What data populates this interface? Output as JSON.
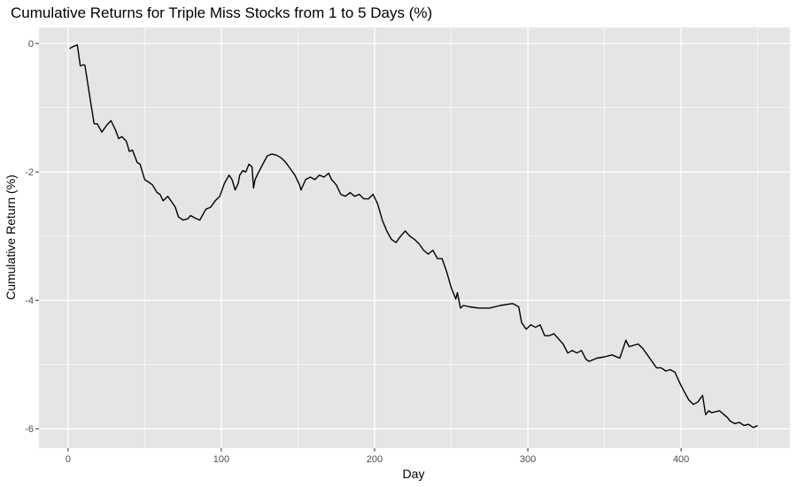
{
  "chart_data": {
    "type": "line",
    "title": "Cumulative Returns for Triple Miss Stocks from 1 to 5 Days (%)",
    "xlabel": "Day",
    "ylabel": "Cumulative Return (%)",
    "xlim": [
      -19,
      471
    ],
    "ylim": [
      -6.3,
      0.25
    ],
    "x_ticks": [
      0,
      100,
      200,
      300,
      400
    ],
    "x_tick_labels": [
      "0",
      "100",
      "200",
      "300",
      "400"
    ],
    "y_ticks": [
      0,
      -2,
      -4,
      -6
    ],
    "y_tick_labels": [
      "0",
      "-2",
      "-4",
      "-6"
    ],
    "grid": true,
    "colors": {
      "panel": "#e5e5e5",
      "grid": "#ffffff",
      "line": "#000000",
      "tick": "#4d4d4d"
    },
    "series": [
      {
        "color": "#000000",
        "x": [
          1,
          3,
          6,
          8,
          10,
          11,
          13,
          15,
          17,
          19,
          22,
          25,
          28,
          31,
          33,
          35,
          38,
          40,
          42,
          45,
          47,
          50,
          52,
          55,
          58,
          60,
          62,
          65,
          68,
          70,
          72,
          75,
          78,
          80,
          83,
          86,
          88,
          90,
          93,
          96,
          99,
          102,
          105,
          107,
          109,
          111,
          112,
          114,
          116,
          118,
          120,
          121,
          122,
          124,
          127,
          130,
          133,
          136,
          139,
          142,
          145,
          148,
          151,
          152,
          155,
          158,
          161,
          164,
          167,
          170,
          172,
          175,
          178,
          181,
          184,
          187,
          190,
          193,
          196,
          199,
          202,
          205,
          208,
          211,
          214,
          217,
          220,
          223,
          226,
          229,
          232,
          235,
          238,
          241,
          244,
          247,
          250,
          253,
          254,
          256,
          258,
          262,
          268,
          275,
          282,
          290,
          294,
          296,
          299,
          302,
          305,
          308,
          311,
          314,
          317,
          320,
          323,
          326,
          329,
          332,
          335,
          338,
          340,
          345,
          350,
          355,
          360,
          364,
          366,
          369,
          372,
          375,
          378,
          381,
          384,
          387,
          390,
          393,
          396,
          399,
          402,
          405,
          408,
          411,
          414,
          416,
          418,
          420,
          425,
          430,
          432,
          435,
          438,
          441,
          444,
          447,
          450
        ],
        "y": [
          -0.08,
          -0.05,
          -0.02,
          -0.35,
          -0.33,
          -0.34,
          -0.65,
          -0.95,
          -1.25,
          -1.25,
          -1.38,
          -1.28,
          -1.2,
          -1.35,
          -1.48,
          -1.45,
          -1.52,
          -1.68,
          -1.66,
          -1.85,
          -1.88,
          -2.12,
          -2.15,
          -2.2,
          -2.32,
          -2.35,
          -2.45,
          -2.38,
          -2.48,
          -2.55,
          -2.7,
          -2.75,
          -2.73,
          -2.68,
          -2.72,
          -2.75,
          -2.66,
          -2.58,
          -2.55,
          -2.45,
          -2.38,
          -2.18,
          -2.05,
          -2.12,
          -2.28,
          -2.18,
          -2.05,
          -1.98,
          -2.0,
          -1.88,
          -1.92,
          -2.25,
          -2.12,
          -2.02,
          -1.88,
          -1.75,
          -1.72,
          -1.74,
          -1.78,
          -1.85,
          -1.95,
          -2.05,
          -2.2,
          -2.28,
          -2.12,
          -2.08,
          -2.12,
          -2.05,
          -2.08,
          -2.02,
          -2.12,
          -2.2,
          -2.35,
          -2.38,
          -2.32,
          -2.38,
          -2.35,
          -2.42,
          -2.42,
          -2.35,
          -2.5,
          -2.75,
          -2.92,
          -3.05,
          -3.1,
          -3.0,
          -2.92,
          -3.0,
          -3.05,
          -3.12,
          -3.22,
          -3.28,
          -3.22,
          -3.35,
          -3.35,
          -3.55,
          -3.8,
          -3.98,
          -3.88,
          -4.12,
          -4.08,
          -4.1,
          -4.12,
          -4.12,
          -4.08,
          -4.05,
          -4.1,
          -4.35,
          -4.45,
          -4.38,
          -4.42,
          -4.38,
          -4.55,
          -4.55,
          -4.52,
          -4.6,
          -4.68,
          -4.82,
          -4.78,
          -4.82,
          -4.78,
          -4.92,
          -4.95,
          -4.9,
          -4.88,
          -4.85,
          -4.9,
          -4.62,
          -4.72,
          -4.7,
          -4.68,
          -4.75,
          -4.85,
          -4.95,
          -5.05,
          -5.05,
          -5.1,
          -5.08,
          -5.12,
          -5.28,
          -5.42,
          -5.55,
          -5.62,
          -5.58,
          -5.48,
          -5.78,
          -5.72,
          -5.75,
          -5.72,
          -5.82,
          -5.88,
          -5.92,
          -5.9,
          -5.95,
          -5.93,
          -5.98,
          -5.95
        ]
      }
    ]
  }
}
